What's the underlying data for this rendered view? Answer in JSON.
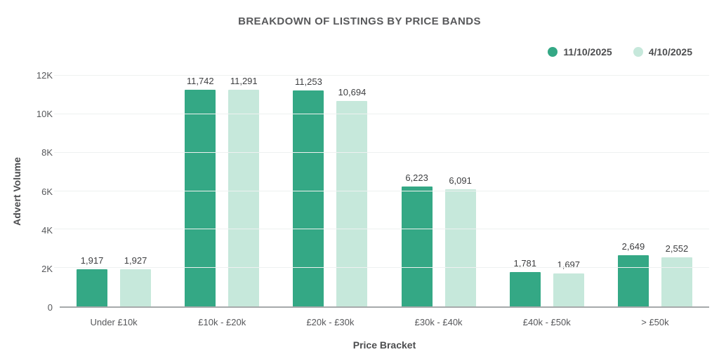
{
  "title": "BREAKDOWN OF LISTINGS BY PRICE BANDS",
  "chart_data": {
    "type": "bar",
    "categories": [
      "Under £10k",
      "£10k - £20k",
      "£20k - £30k",
      "£30k - £40k",
      "£40k - £50k",
      "> £50k"
    ],
    "series": [
      {
        "name": "11/10/2025",
        "color": "#34a885",
        "values": [
          1917,
          11742,
          11253,
          6223,
          1781,
          2649
        ]
      },
      {
        "name": "4/10/2025",
        "color": "#c6e8db",
        "values": [
          1927,
          11291,
          10694,
          6091,
          1697,
          2552
        ]
      }
    ],
    "xlabel": "Price Bracket",
    "ylabel": "Advert Volume",
    "ylim": [
      0,
      12000
    ],
    "yticks": [
      0,
      2000,
      4000,
      6000,
      8000,
      10000,
      12000
    ],
    "ytick_labels": [
      "0",
      "2K",
      "4K",
      "6K",
      "8K",
      "10K",
      "12K"
    ],
    "grid": true,
    "legend_position": "top-right",
    "colors": {
      "title_text": "#58595b",
      "axis_text": "#56575a",
      "value_label_text": "#3d3e40",
      "gridline": "#eef1f0",
      "axis_line": "#a6a9ab",
      "background": "#ffffff"
    }
  }
}
